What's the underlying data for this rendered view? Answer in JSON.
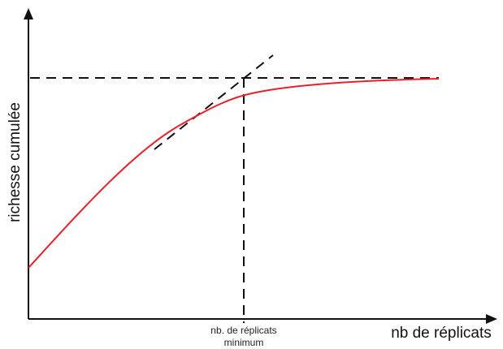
{
  "diagram": {
    "y_axis_label": "richesse cumulée",
    "x_axis_label": "nb de réplicats",
    "marker_label_line1": "nb. de réplicats",
    "marker_label_line2": "minimum",
    "colors": {
      "curve": "#e8202a",
      "axes": "#111111",
      "dashed": "#111111"
    },
    "elements": [
      "saturation curve (red)",
      "tangent line (dashed)",
      "asymptote line (dashed, horizontal)",
      "minimum replicates marker (dashed, vertical)"
    ]
  }
}
